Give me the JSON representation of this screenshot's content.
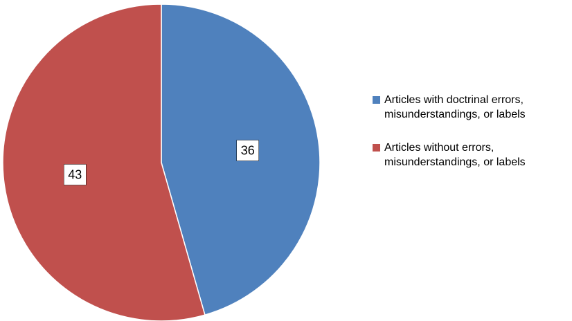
{
  "chart_data": {
    "type": "pie",
    "slices": [
      {
        "name": "Articles with doctrinal errors,\nmisunderstandings, or labels",
        "value": 36,
        "color": "#4F81BD"
      },
      {
        "name": "Articles without errors,\nmisunderstandings, or labels",
        "value": 43,
        "color": "#C0504D"
      }
    ],
    "start_angle": "12 o'clock",
    "direction": "clockwise",
    "data_labels": "value in white box",
    "legend_position": "right"
  }
}
